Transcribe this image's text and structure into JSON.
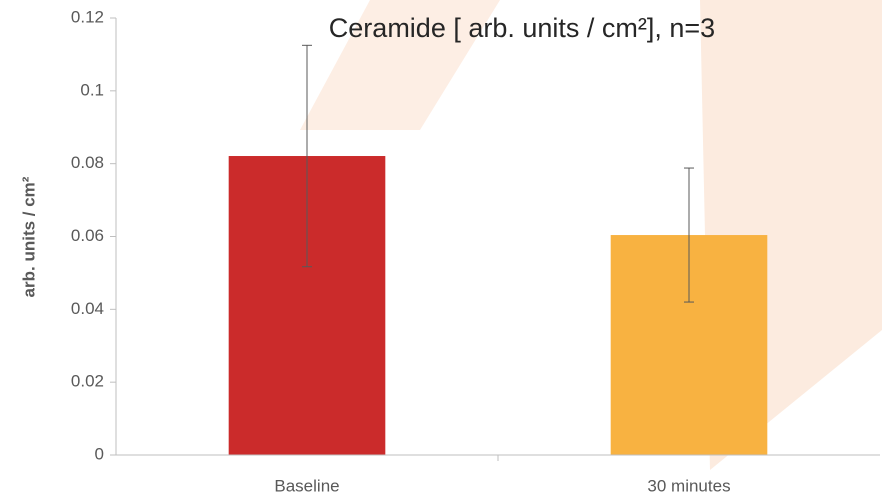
{
  "chart_data": {
    "type": "bar",
    "title": "Ceramide [ arb. units / cm²], n=3",
    "y_label": "arb. units / cm²",
    "categories": [
      "Baseline",
      "30 minutes"
    ],
    "values": [
      0.0821,
      0.0604
    ],
    "errors": [
      0.0304,
      0.0184
    ],
    "colors": [
      "#cb2b2b",
      "#f8b241"
    ],
    "ylim": [
      0,
      0.12
    ],
    "yticks": [
      0,
      0.02,
      0.04,
      0.06,
      0.08,
      0.1,
      0.12
    ],
    "grid": false
  }
}
